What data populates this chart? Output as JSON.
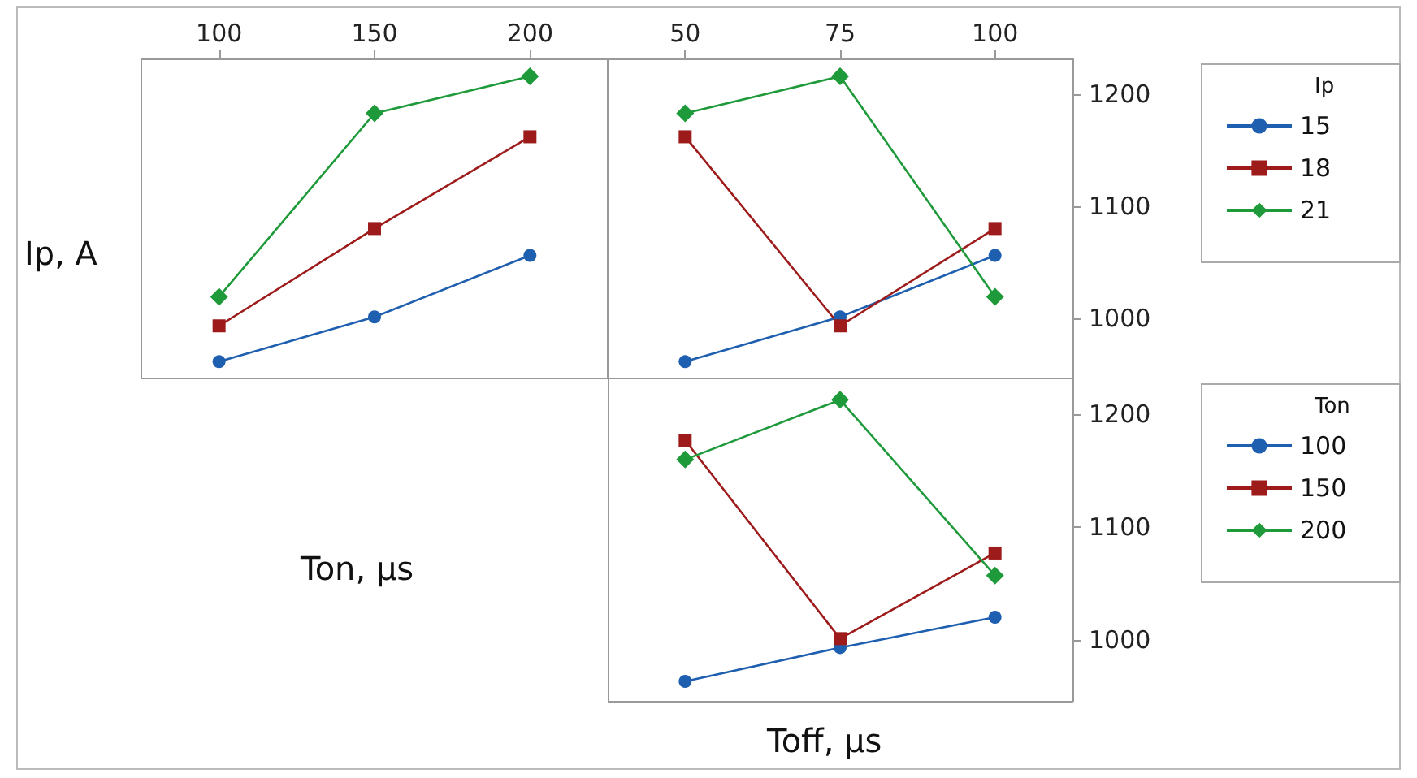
{
  "chart_data": [
    {
      "type": "line",
      "xlabel": "Ton, µs",
      "ylabel": "Ip, A",
      "categories": [
        "100",
        "150",
        "200"
      ],
      "ylim": [
        946,
        1232
      ],
      "yticks": [
        1000,
        1100,
        1200
      ],
      "tick_labels": "x",
      "legend": false,
      "series": [
        {
          "color": "#1f5fb0",
          "marker": "circle",
          "values": [
            961,
            1001,
            1056
          ]
        },
        {
          "color": "#9e1b1b",
          "marker": "square",
          "values": [
            993,
            1080,
            1162
          ]
        },
        {
          "color": "#1e9a3a",
          "marker": "diamond",
          "values": [
            1019,
            1183,
            1216
          ]
        }
      ]
    },
    {
      "type": "line",
      "legend_title": "Ip",
      "categories": [
        "50",
        "75",
        "100"
      ],
      "ylim": [
        946,
        1232
      ],
      "yticks": [
        1000,
        1100,
        1200
      ],
      "legend": "right",
      "series": [
        {
          "name": "15",
          "color": "#1f5fb0",
          "marker": "circle",
          "values": [
            961,
            1001,
            1056
          ]
        },
        {
          "name": "18",
          "color": "#9e1b1b",
          "marker": "square",
          "values": [
            1162,
            993,
            1080
          ]
        },
        {
          "name": "21",
          "color": "#1e9a3a",
          "marker": "diamond",
          "values": [
            1183,
            1216,
            1019
          ]
        }
      ]
    },
    {
      "type": "line",
      "xlabel": "Toff, µs",
      "legend_title": "Ton",
      "categories": [
        null,
        null,
        null
      ],
      "ylim": [
        945,
        1232
      ],
      "yticks": [
        1000,
        1100,
        1200
      ],
      "tick_labels": "y",
      "legend": "right",
      "series": [
        {
          "name": "100",
          "color": "#1f5fb0",
          "marker": "circle",
          "values": [
            963,
            993,
            1020
          ]
        },
        {
          "name": "150",
          "color": "#9e1b1b",
          "marker": "square",
          "values": [
            1177,
            1001,
            1077
          ]
        },
        {
          "name": "200",
          "color": "#1e9a3a",
          "marker": "diamond",
          "values": [
            1160,
            1213,
            1057
          ]
        }
      ]
    }
  ]
}
